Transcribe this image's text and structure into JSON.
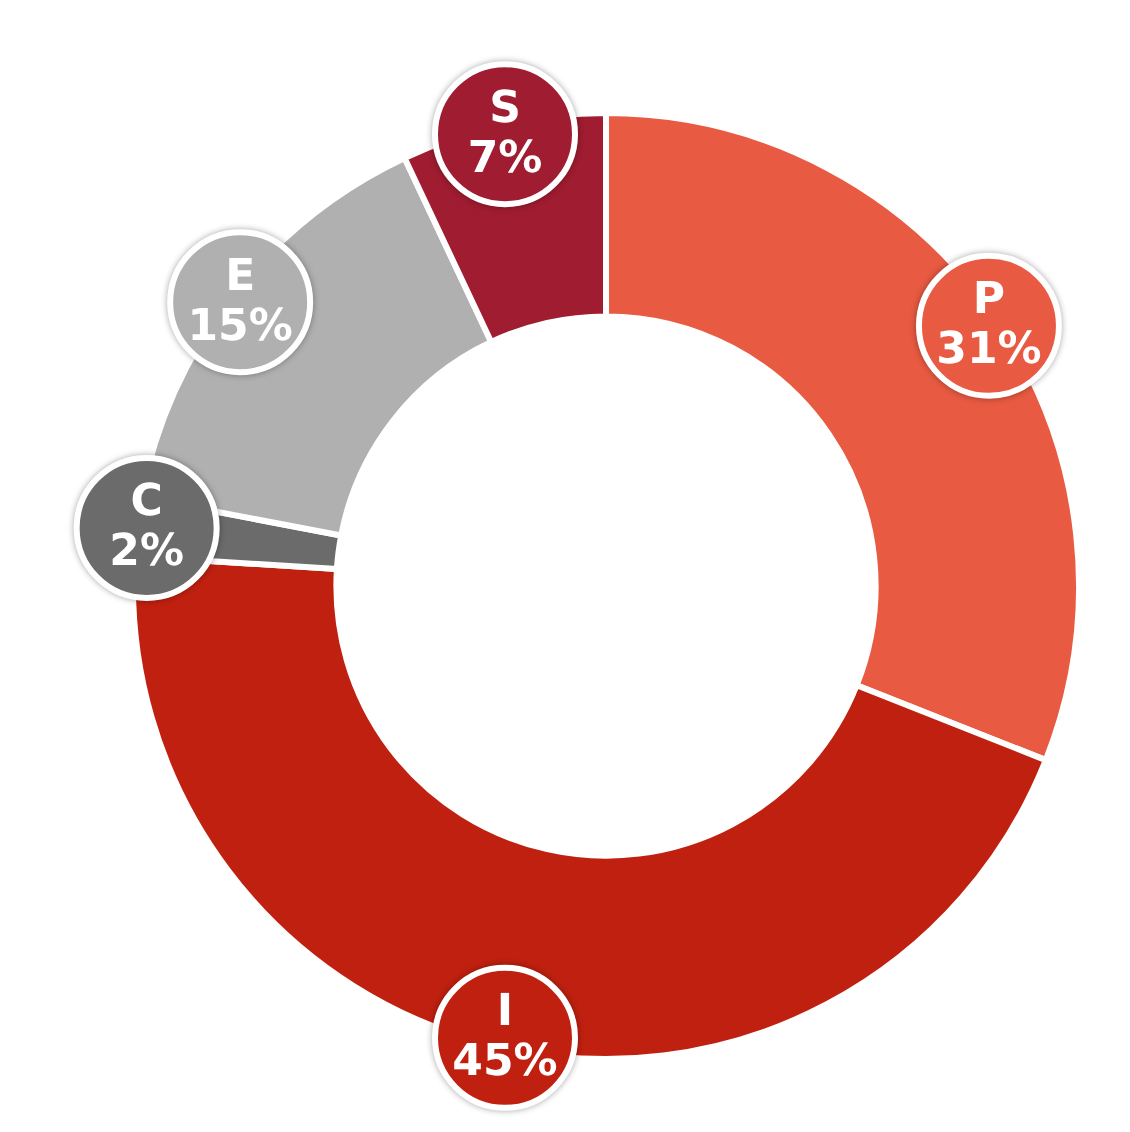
{
  "chart_data": {
    "type": "donut",
    "categories": [
      "P",
      "I",
      "C",
      "E",
      "S"
    ],
    "values": [
      31,
      45,
      2,
      15,
      7
    ],
    "colors": [
      "#e85a42",
      "#c0200f",
      "#6b6b6b",
      "#b0b0b0",
      "#a01c30"
    ],
    "value_labels": [
      "31%",
      "45%",
      "2%",
      "15%",
      "7%"
    ],
    "legend": false
  }
}
